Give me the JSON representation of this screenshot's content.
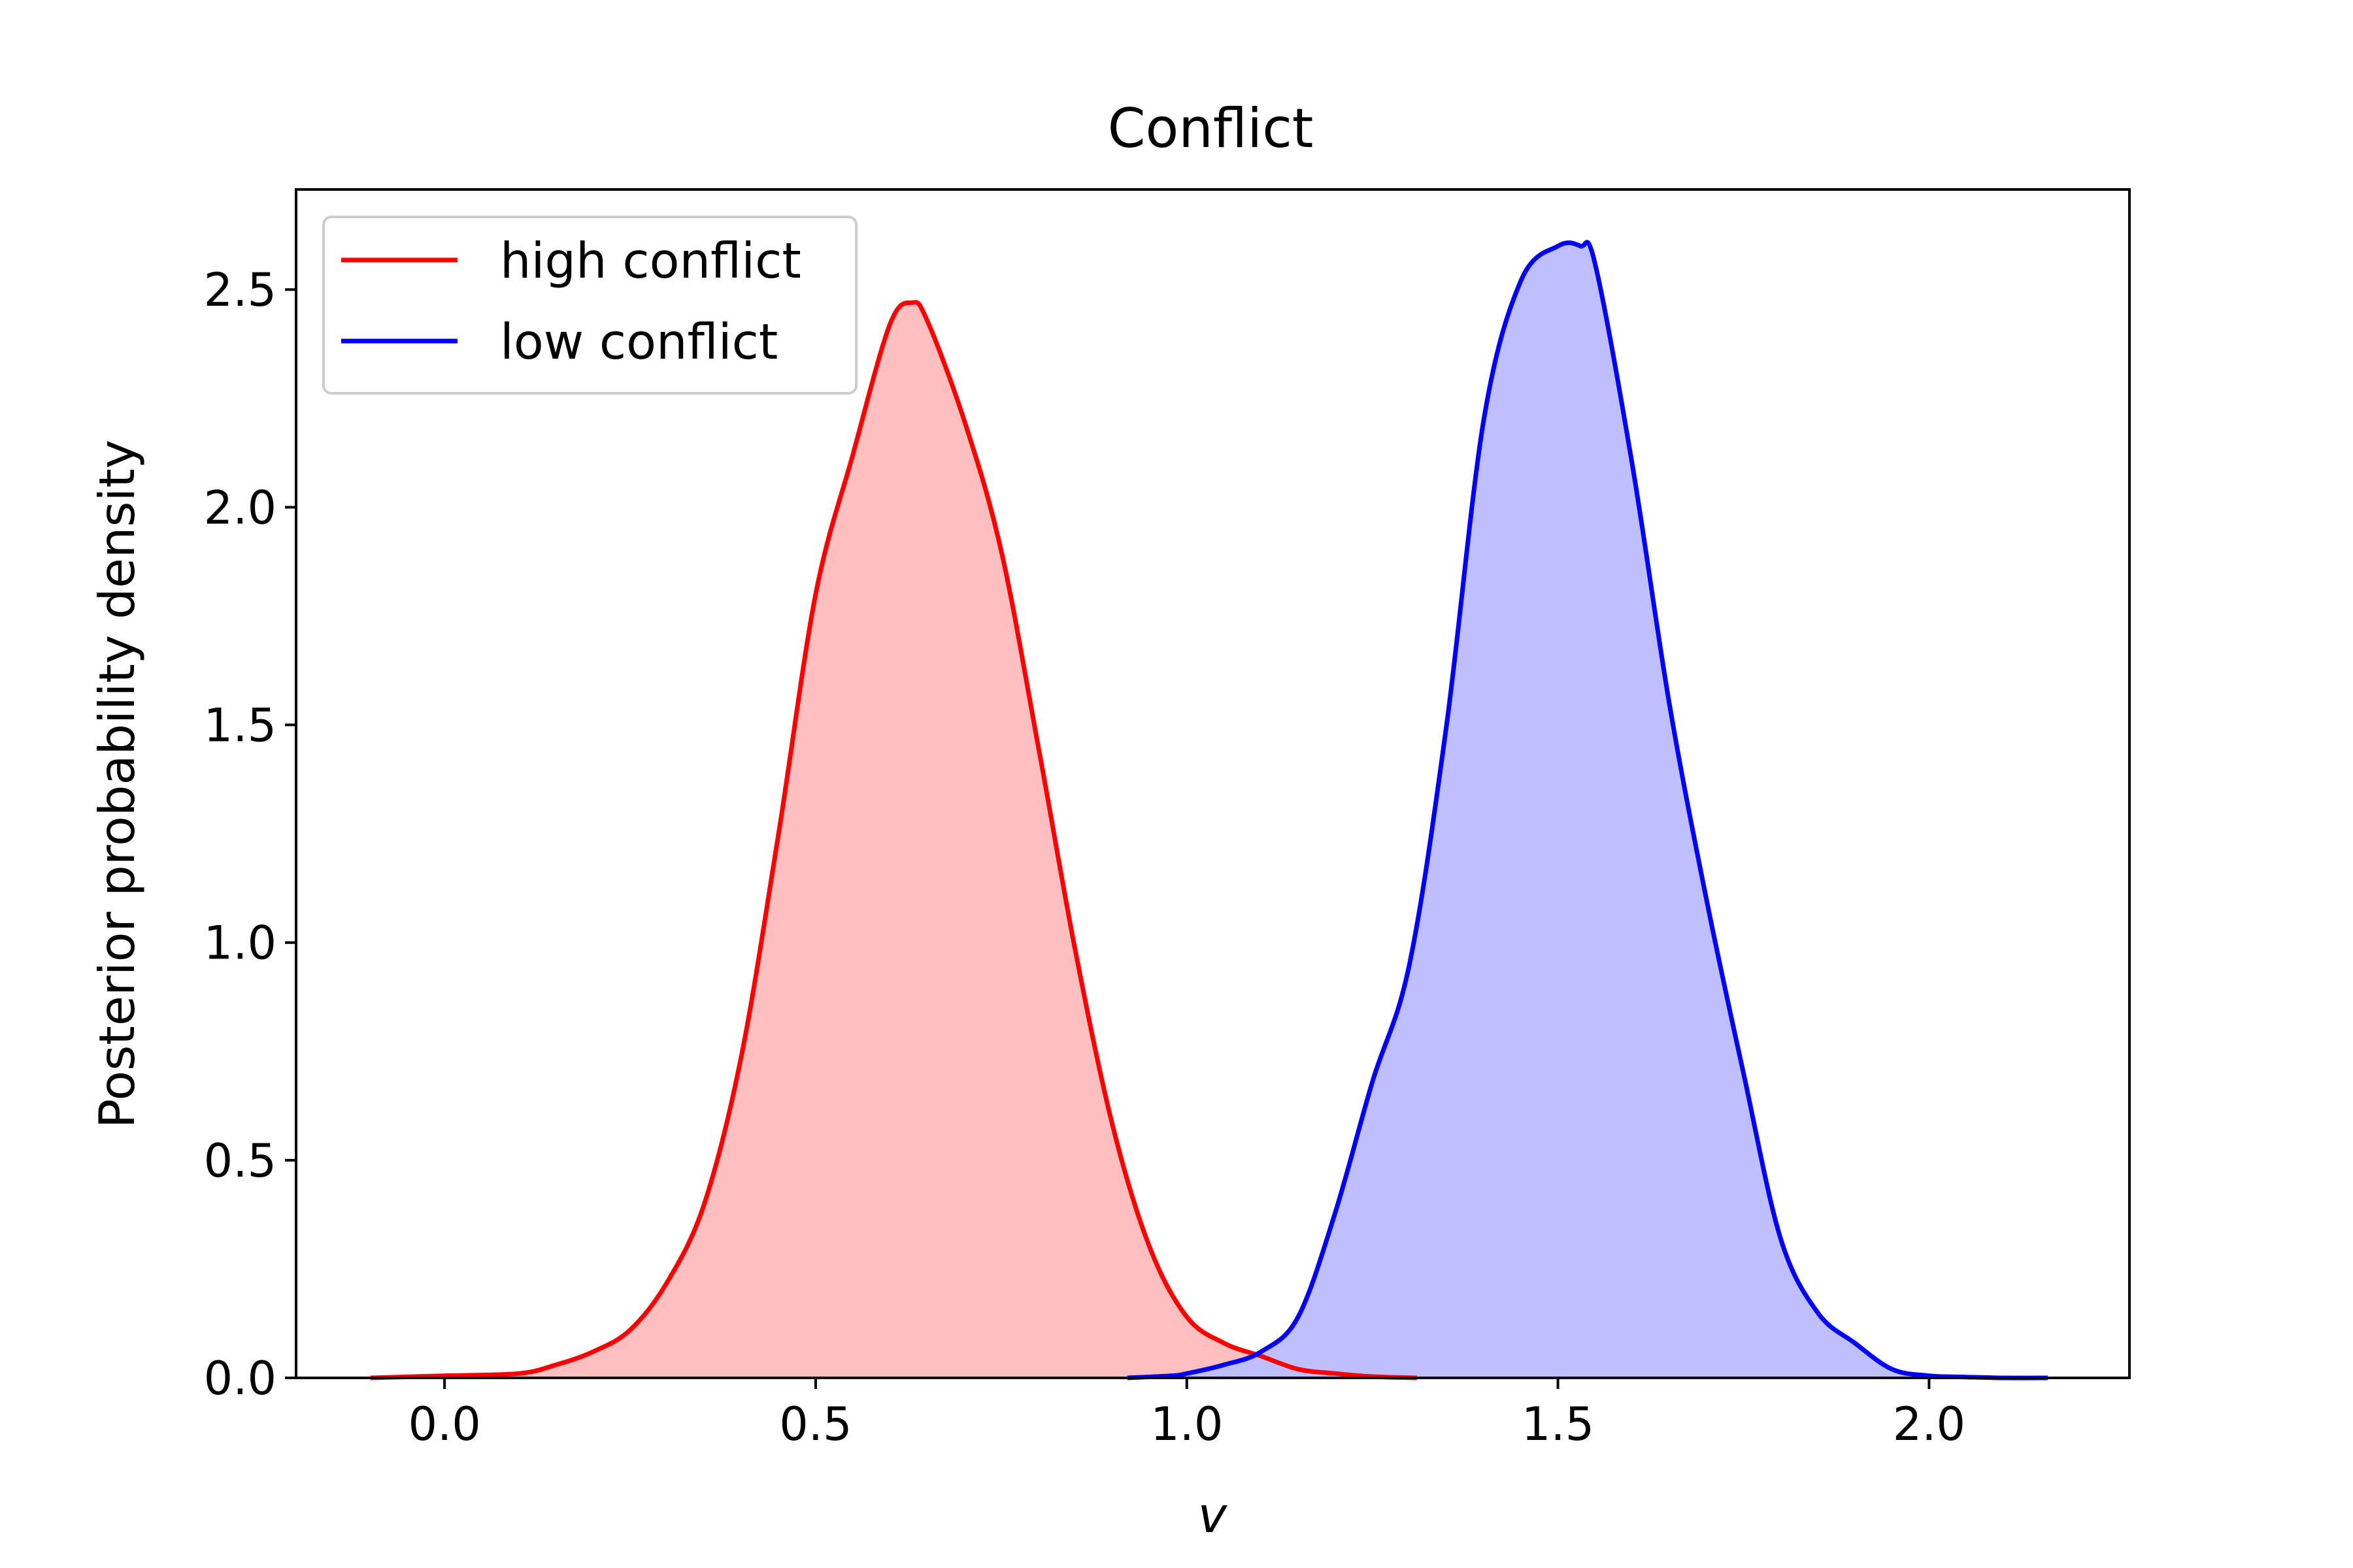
{
  "chart_data": {
    "type": "area",
    "title": "Conflict",
    "xlabel": "v",
    "ylabel": "Posterior probability density",
    "xlim": [
      -0.2,
      2.27
    ],
    "ylim": [
      0,
      2.73
    ],
    "xticks": [
      0.0,
      0.5,
      1.0,
      1.5,
      2.0
    ],
    "xtick_labels": [
      "0.0",
      "0.5",
      "1.0",
      "1.5",
      "2.0"
    ],
    "yticks": [
      0.0,
      0.5,
      1.0,
      1.5,
      2.0,
      2.5
    ],
    "ytick_labels": [
      "0.0",
      "0.5",
      "1.0",
      "1.5",
      "2.0",
      "2.5"
    ],
    "grid": false,
    "legend_position": "top-left",
    "series": [
      {
        "name": "high conflict",
        "color": "#ff0000",
        "fill": "#ffbfbf",
        "x": [
          -0.1,
          0.0,
          0.1,
          0.15,
          0.2,
          0.25,
          0.3,
          0.35,
          0.4,
          0.45,
          0.5,
          0.55,
          0.6,
          0.63,
          0.65,
          0.7,
          0.75,
          0.8,
          0.85,
          0.9,
          0.95,
          1.0,
          1.05,
          1.1,
          1.15,
          1.2,
          1.25,
          1.31
        ],
        "y": [
          0.0,
          0.005,
          0.01,
          0.03,
          0.06,
          0.11,
          0.22,
          0.4,
          0.74,
          1.25,
          1.8,
          2.12,
          2.42,
          2.47,
          2.43,
          2.2,
          1.9,
          1.45,
          0.98,
          0.58,
          0.3,
          0.14,
          0.08,
          0.05,
          0.02,
          0.01,
          0.003,
          0.0
        ]
      },
      {
        "name": "low conflict",
        "color": "#0000ff",
        "fill": "#bfbfff",
        "x": [
          0.92,
          0.98,
          1.0,
          1.05,
          1.1,
          1.15,
          1.2,
          1.25,
          1.3,
          1.35,
          1.4,
          1.45,
          1.5,
          1.53,
          1.55,
          1.6,
          1.65,
          1.7,
          1.75,
          1.8,
          1.85,
          1.9,
          1.95,
          2.0,
          2.05,
          2.1,
          2.16
        ],
        "y": [
          0.0,
          0.005,
          0.01,
          0.03,
          0.06,
          0.14,
          0.38,
          0.68,
          0.95,
          1.5,
          2.2,
          2.52,
          2.6,
          2.6,
          2.56,
          2.1,
          1.55,
          1.1,
          0.7,
          0.32,
          0.15,
          0.08,
          0.02,
          0.005,
          0.002,
          0.0,
          0.0
        ]
      }
    ]
  }
}
